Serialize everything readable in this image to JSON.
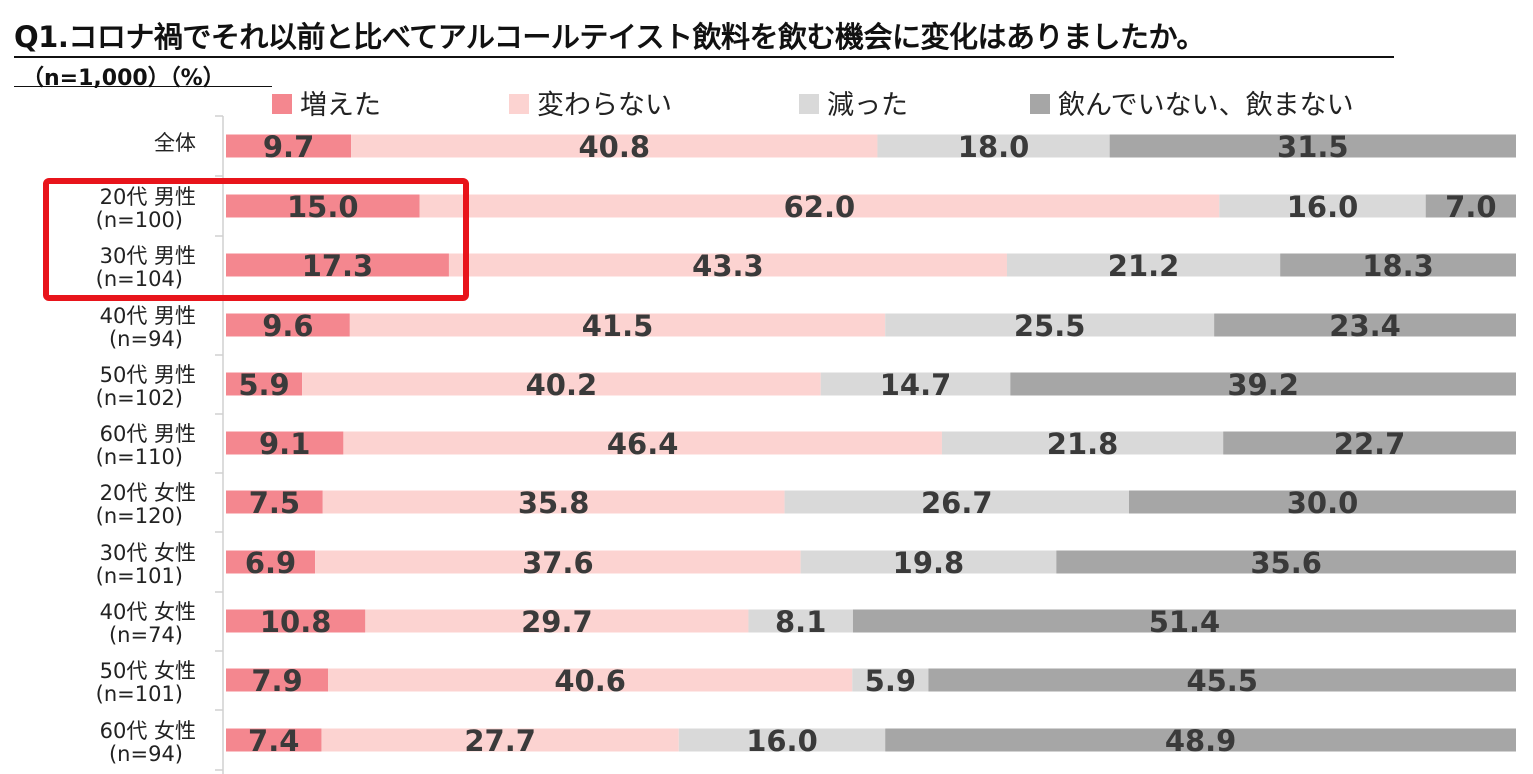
{
  "title": "Q1.コロナ禍でそれ以前と比べてアルコールテイスト飲料を飲む機会に変化はありましたか。",
  "subtitle": "（n=1,000）（%）",
  "chart_data": {
    "type": "bar",
    "orientation": "horizontal",
    "stacked": "100%",
    "legend_position": "top",
    "highlight": {
      "rows": [
        1,
        2
      ],
      "color": "#e8141b"
    },
    "categories": [
      {
        "line1": "全体",
        "line2": ""
      },
      {
        "line1": "20代 男性",
        "line2": "(n=100)"
      },
      {
        "line1": "30代 男性",
        "line2": "(n=104)"
      },
      {
        "line1": "40代 男性",
        "line2": "(n=94)"
      },
      {
        "line1": "50代 男性",
        "line2": "(n=102)"
      },
      {
        "line1": "60代 男性",
        "line2": "(n=110)"
      },
      {
        "line1": "20代 女性",
        "line2": "(n=120)"
      },
      {
        "line1": "30代 女性",
        "line2": "(n=101)"
      },
      {
        "line1": "40代 女性",
        "line2": "(n=74)"
      },
      {
        "line1": "50代 女性",
        "line2": "(n=101)"
      },
      {
        "line1": "60代 女性",
        "line2": "(n=94)"
      }
    ],
    "series": [
      {
        "name": "増えた",
        "color": "#f4878f",
        "values": [
          "9.7",
          "15.0",
          "17.3",
          "9.6",
          "5.9",
          "9.1",
          "7.5",
          "6.9",
          "10.8",
          "7.9",
          "7.4"
        ]
      },
      {
        "name": "変わらない",
        "color": "#fcd3d1",
        "values": [
          "40.8",
          "62.0",
          "43.3",
          "41.5",
          "40.2",
          "46.4",
          "35.8",
          "37.6",
          "29.7",
          "40.6",
          "27.7"
        ]
      },
      {
        "name": "減った",
        "color": "#d9d9d9",
        "values": [
          "18.0",
          "16.0",
          "21.2",
          "25.5",
          "14.7",
          "21.8",
          "26.7",
          "19.8",
          "8.1",
          "5.9",
          "16.0"
        ]
      },
      {
        "name": "飲んでいない、飲まない",
        "color": "#a6a6a6",
        "values": [
          "31.5",
          "7.0",
          "18.3",
          "23.4",
          "39.2",
          "22.7",
          "30.0",
          "35.6",
          "51.4",
          "45.5",
          "48.9"
        ]
      }
    ]
  }
}
